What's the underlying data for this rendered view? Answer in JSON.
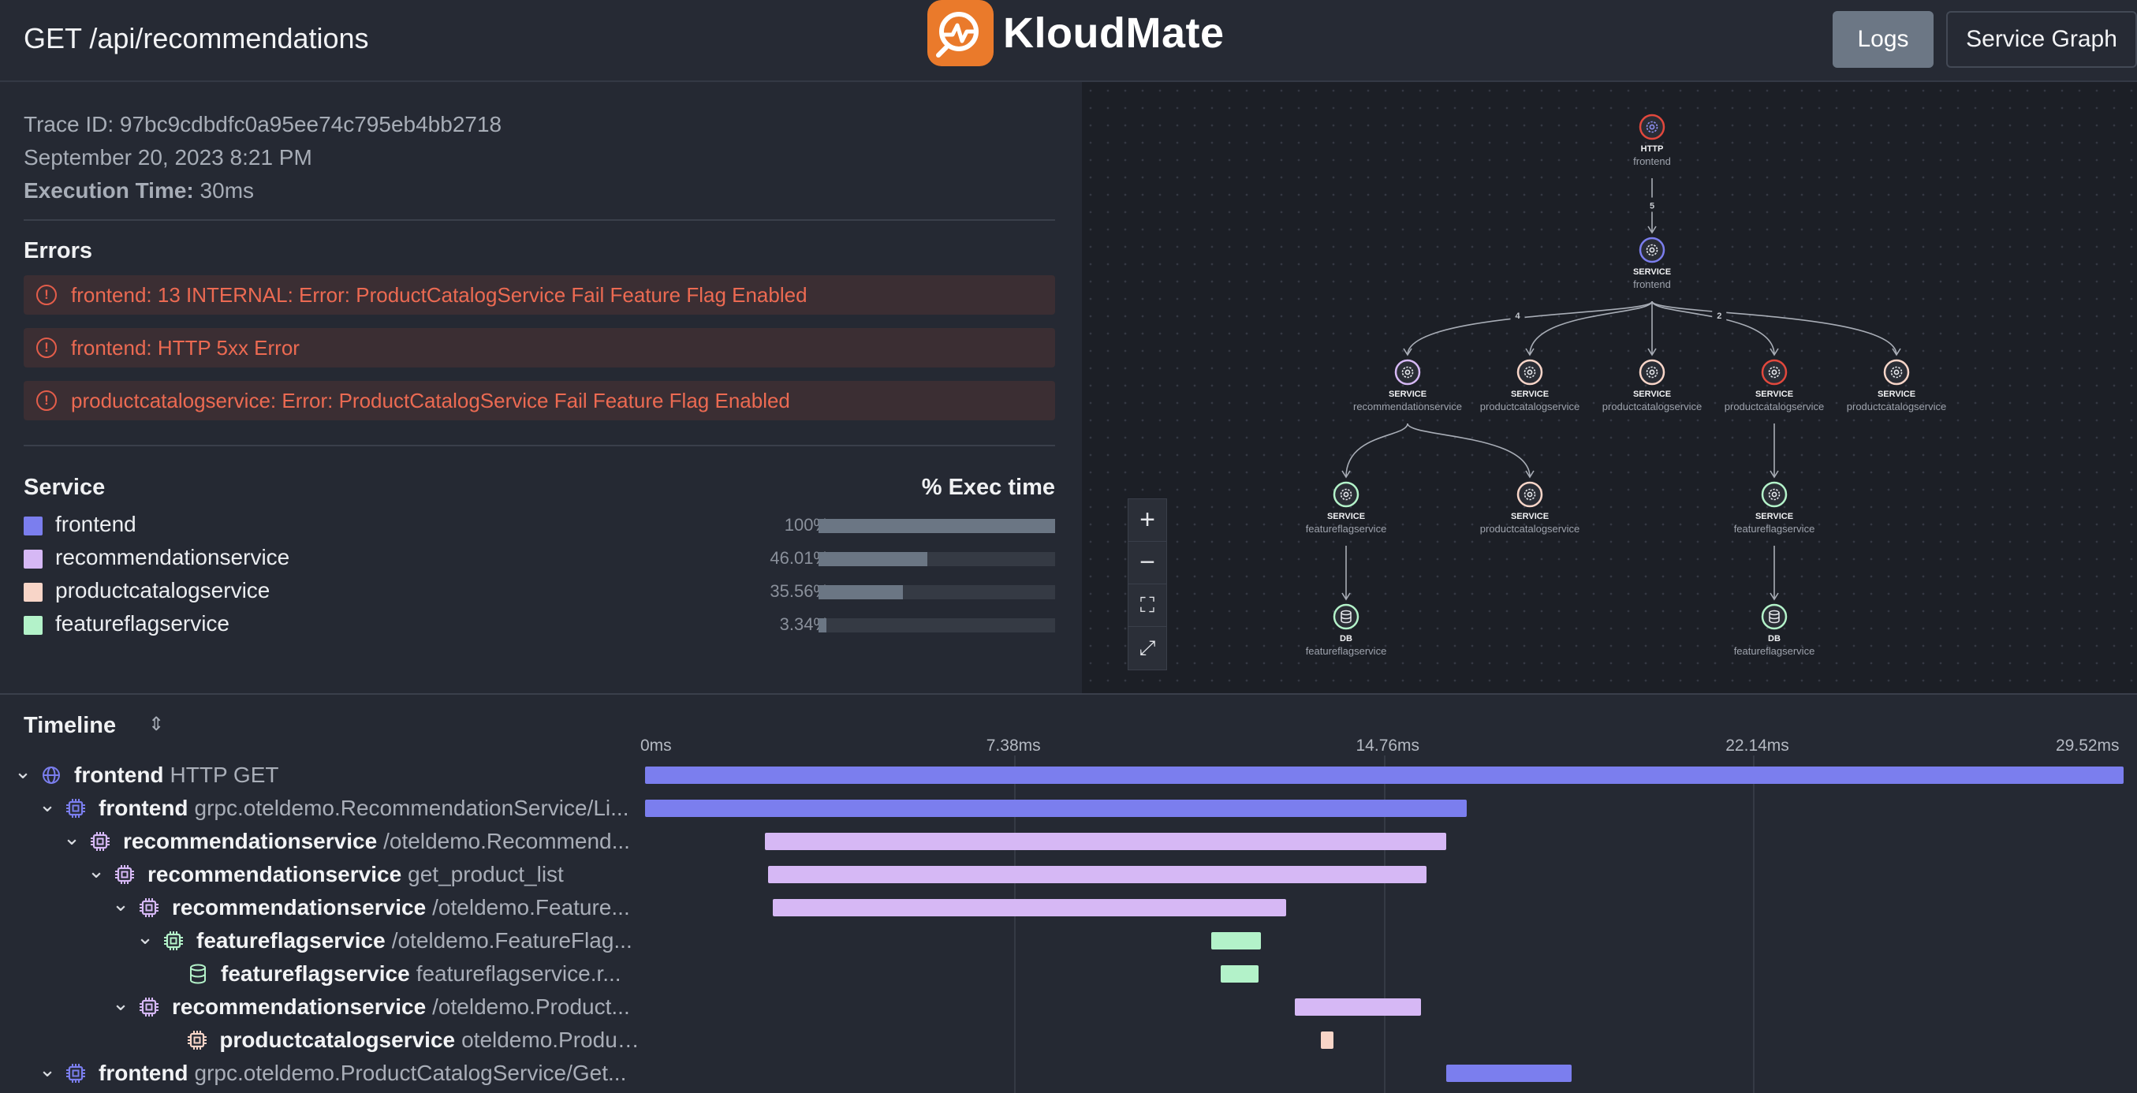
{
  "header": {
    "title": "GET /api/recommendations",
    "logo_text": "KloudMate",
    "logs_label": "Logs",
    "service_graph_label": "Service Graph"
  },
  "trace": {
    "trace_id": "Trace ID: 97bc9cdbdfc0a95ee74c795eb4bb2718",
    "date": "September 20, 2023 8:21 PM",
    "exec_label": "Execution Time:",
    "exec_value": "30ms"
  },
  "errors": {
    "title": "Errors",
    "items": [
      "frontend: 13 INTERNAL: Error: ProductCatalogService Fail Feature Flag Enabled",
      "frontend: HTTP 5xx Error",
      "productcatalogservice: Error: ProductCatalogService Fail Feature Flag Enabled"
    ]
  },
  "services": {
    "title": "Service",
    "exec_title": "% Exec time",
    "items": [
      {
        "name": "frontend",
        "pct": "100%",
        "fraction": 1.0,
        "color": "#7b7eee"
      },
      {
        "name": "recommendationservice",
        "pct": "46.01%",
        "fraction": 0.4601,
        "color": "#d6b8f5"
      },
      {
        "name": "productcatalogservice",
        "pct": "35.56%",
        "fraction": 0.3556,
        "color": "#f8d5c8"
      },
      {
        "name": "featureflagservice",
        "pct": "3.34%",
        "fraction": 0.0334,
        "color": "#b3f2c9"
      }
    ]
  },
  "graph": {
    "nodes": [
      {
        "type": "HTTP",
        "name": "frontend",
        "ring": "#e2483d"
      },
      {
        "type": "SERVICE",
        "name": "frontend",
        "ring": "#7b7eee"
      },
      {
        "type": "SERVICE",
        "name": "recommendationservice",
        "ring": "#d6b8f5"
      },
      {
        "type": "SERVICE",
        "name": "productcatalogservice",
        "ring": "#f8d5c8"
      },
      {
        "type": "SERVICE",
        "name": "productcatalogservice",
        "ring": "#f8d5c8"
      },
      {
        "type": "SERVICE",
        "name": "productcatalogservice",
        "ring": "#e2483d"
      },
      {
        "type": "SERVICE",
        "name": "productcatalogservice",
        "ring": "#f8d5c8"
      },
      {
        "type": "SERVICE",
        "name": "featureflagservice",
        "ring": "#b3f2c9"
      },
      {
        "type": "SERVICE",
        "name": "productcatalogservice",
        "ring": "#f8d5c8"
      },
      {
        "type": "SERVICE",
        "name": "featureflagservice",
        "ring": "#b3f2c9"
      },
      {
        "type": "DB",
        "name": "featureflagservice",
        "ring": "#b3f2c9"
      },
      {
        "type": "DB",
        "name": "featureflagservice",
        "ring": "#b3f2c9"
      }
    ],
    "edge_labels": [
      "5",
      "4",
      "2"
    ],
    "zoom": [
      "+",
      "−",
      "⛶",
      "⤢"
    ]
  },
  "timeline": {
    "title": "Timeline",
    "sort_icon": "⇕",
    "ticks": [
      "0ms",
      "7.38ms",
      "14.76ms",
      "22.14ms",
      "29.52ms"
    ],
    "rows": [
      {
        "svc": "frontend",
        "op": "HTTP GET",
        "start_ms": 0,
        "end_ms": 29.52,
        "color": "#7b7eee",
        "icon": "globe-icon"
      },
      {
        "svc": "frontend",
        "op": "grpc.oteldemo.RecommendationService/Li...",
        "start_ms": 0,
        "end_ms": 16.4,
        "color": "#7b7eee",
        "icon": "cpu-icon"
      },
      {
        "svc": "recommendationservice",
        "op": "/oteldemo.Recommend...",
        "start_ms": 2.4,
        "end_ms": 16.0,
        "color": "#d6b8f5",
        "icon": "cpu-icon"
      },
      {
        "svc": "recommendationservice",
        "op": "get_product_list",
        "start_ms": 2.45,
        "end_ms": 15.6,
        "color": "#d6b8f5",
        "icon": "cpu-icon"
      },
      {
        "svc": "recommendationservice",
        "op": "/oteldemo.Feature...",
        "start_ms": 2.55,
        "end_ms": 12.8,
        "color": "#d6b8f5",
        "icon": "cpu-icon"
      },
      {
        "svc": "featureflagservice",
        "op": "/oteldemo.FeatureFlag...",
        "start_ms": 11.3,
        "end_ms": 12.3,
        "color": "#b3f2c9",
        "icon": "cpu-icon"
      },
      {
        "svc": "featureflagservice",
        "op": "featureflagservice.r...",
        "start_ms": 11.5,
        "end_ms": 12.25,
        "color": "#b3f2c9",
        "icon": "db-icon"
      },
      {
        "svc": "recommendationservice",
        "op": "/oteldemo.Product...",
        "start_ms": 12.98,
        "end_ms": 15.5,
        "color": "#d6b8f5",
        "icon": "cpu-icon"
      },
      {
        "svc": "productcatalogservice",
        "op": "oteldemo.Product...",
        "start_ms": 13.5,
        "end_ms": 13.75,
        "color": "#f8d5c8",
        "icon": "cpu-icon"
      },
      {
        "svc": "frontend",
        "op": "grpc.oteldemo.ProductCatalogService/Get...",
        "start_ms": 16.0,
        "end_ms": 18.5,
        "color": "#7b7eee",
        "icon": "cpu-icon"
      }
    ]
  }
}
